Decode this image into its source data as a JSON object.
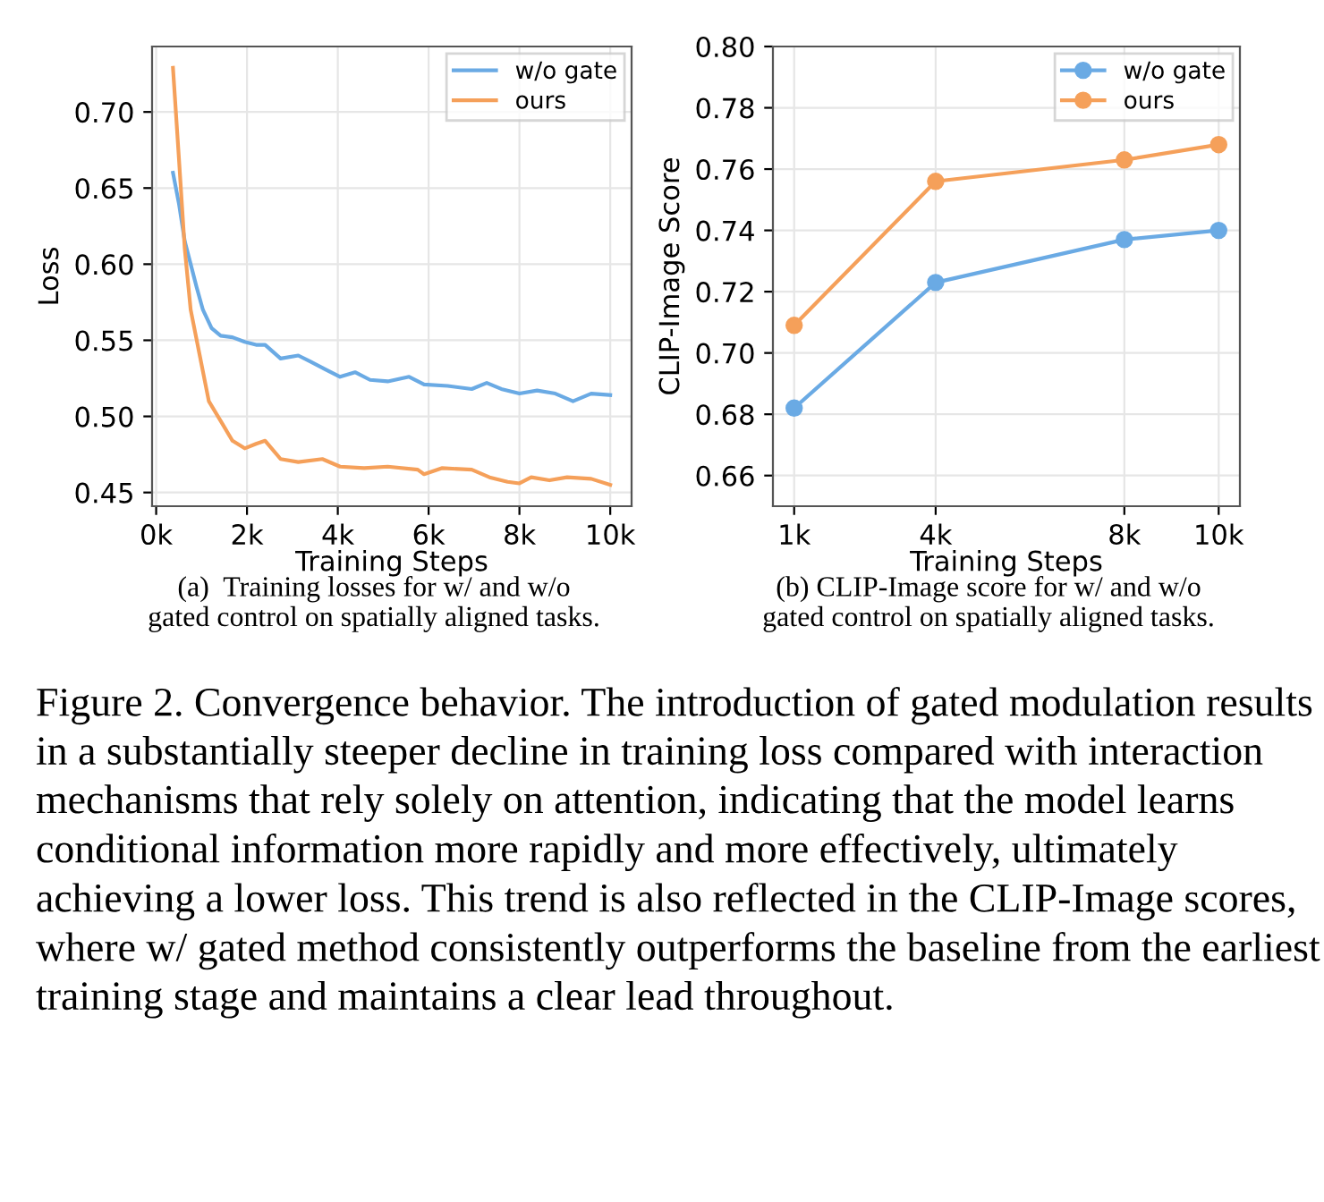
{
  "chart_data": [
    {
      "type": "line",
      "xlabel": "Training Steps",
      "ylabel": "Loss",
      "legend": "top right",
      "grid": true,
      "marker": "none",
      "line_style": "solid",
      "xlim": [
        -90,
        10470
      ],
      "ylim": [
        0.441,
        0.743
      ],
      "xticks": [
        {
          "value": 0,
          "label": "0k"
        },
        {
          "value": 2000,
          "label": "2k"
        },
        {
          "value": 4000,
          "label": "4k"
        },
        {
          "value": 6000,
          "label": "6k"
        },
        {
          "value": 8000,
          "label": "8k"
        },
        {
          "value": 10000,
          "label": "10k"
        }
      ],
      "yticks": [
        0.45,
        {
          "value": 0.5,
          "label": "0.50"
        },
        0.55,
        {
          "value": 0.6,
          "label": "0.60"
        },
        0.65,
        {
          "value": 0.7,
          "label": "0.70"
        }
      ],
      "series": [
        {
          "name": "w/o gate",
          "color": "#6aaae4",
          "x": [
            370,
            500,
            630,
            760,
            890,
            1030,
            1220,
            1420,
            1680,
            1950,
            2200,
            2400,
            2740,
            3130,
            3400,
            3720,
            4050,
            4380,
            4710,
            5100,
            5570,
            5900,
            6420,
            6950,
            7280,
            7600,
            8000,
            8390,
            8790,
            9180,
            9580,
            10000
          ],
          "values": [
            0.66,
            0.64,
            0.615,
            0.6,
            0.585,
            0.57,
            0.558,
            0.553,
            0.552,
            0.549,
            0.547,
            0.547,
            0.538,
            0.54,
            0.536,
            0.531,
            0.526,
            0.529,
            0.524,
            0.523,
            0.526,
            0.521,
            0.52,
            0.518,
            0.522,
            0.518,
            0.515,
            0.517,
            0.515,
            0.51,
            0.515,
            0.514
          ]
        },
        {
          "name": "ours",
          "color": "#f5a05a",
          "x": [
            370,
            500,
            630,
            760,
            960,
            1160,
            1420,
            1680,
            1950,
            2200,
            2400,
            2740,
            3130,
            3660,
            4050,
            4580,
            5100,
            5760,
            5900,
            6290,
            6950,
            7340,
            7740,
            8000,
            8260,
            8660,
            9050,
            9580,
            10000
          ],
          "values": [
            0.729,
            0.67,
            0.61,
            0.57,
            0.54,
            0.51,
            0.497,
            0.484,
            0.479,
            0.482,
            0.484,
            0.472,
            0.47,
            0.472,
            0.467,
            0.466,
            0.467,
            0.465,
            0.462,
            0.466,
            0.465,
            0.46,
            0.457,
            0.456,
            0.46,
            0.458,
            0.46,
            0.459,
            0.455
          ]
        }
      ],
      "annotations": [
        "(a)  Training losses for w/ and w/o\ngated control on spatially aligned tasks."
      ]
    },
    {
      "type": "line",
      "xlabel": "Training Steps",
      "ylabel": "CLIP-Image Score",
      "legend": "top right",
      "grid": true,
      "marker": "circle",
      "line_style": "solid",
      "x": [
        1000,
        4000,
        8000,
        10000
      ],
      "xlim": [
        550,
        10450
      ],
      "ylim": [
        0.65,
        0.8
      ],
      "xticks": [
        {
          "value": 1000,
          "label": "1k"
        },
        {
          "value": 4000,
          "label": "4k"
        },
        {
          "value": 8000,
          "label": "8k"
        },
        {
          "value": 10000,
          "label": "10k"
        }
      ],
      "yticks": [
        0.66,
        0.68,
        {
          "value": 0.7,
          "label": "0.70"
        },
        0.72,
        0.74,
        0.76,
        0.78,
        {
          "value": 0.8,
          "label": "0.80"
        }
      ],
      "series": [
        {
          "name": "w/o gate",
          "color": "#6aaae4",
          "values": [
            0.682,
            0.723,
            0.737,
            0.74
          ]
        },
        {
          "name": "ours",
          "color": "#f5a05a",
          "values": [
            0.709,
            0.756,
            0.763,
            0.768
          ]
        }
      ],
      "annotations": [
        "(b) CLIP-Image score for w/ and w/o\ngated control on spatially aligned tasks.",
        "Figure 2. Convergence behavior. The introduction of gated modulation results in a substantially steeper decline in training loss compared with interaction mechanisms that rely solely on attention, indicating that the model learns conditional information more rapidly and more effectively, ultimately achieving a lower loss. This trend is also reflected in the CLIP-Image scores, where w/ gated method consistently outperforms the baseline from the earliest training stage and maintains a clear lead throughout."
      ]
    }
  ]
}
